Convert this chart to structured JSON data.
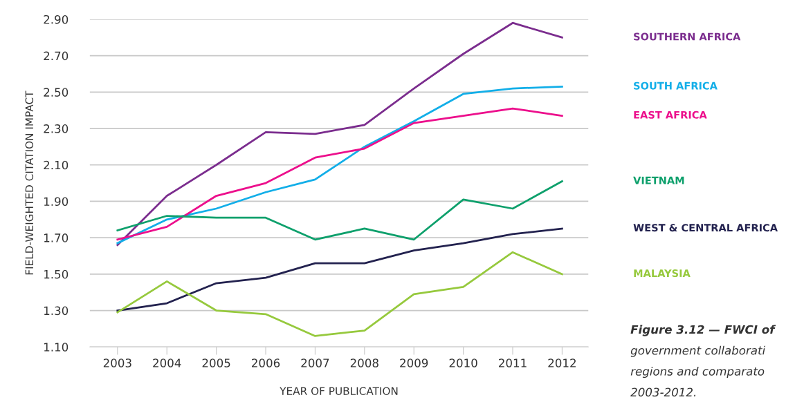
{
  "chart_data": {
    "type": "line",
    "xlabel": "YEAR OF PUBLICATION",
    "ylabel": "FIELD-WEIGHTED CITATION IMPACT",
    "categories": [
      "2003",
      "2004",
      "2005",
      "2006",
      "2007",
      "2008",
      "2009",
      "2010",
      "2011",
      "2012"
    ],
    "series": [
      {
        "name": "SOUTHERN AFRICA",
        "color": "#7b2d8e",
        "values": [
          1.66,
          1.93,
          2.1,
          2.28,
          2.27,
          2.32,
          2.52,
          2.71,
          2.88,
          2.8
        ]
      },
      {
        "name": "SOUTH AFRICA",
        "color": "#12aee8",
        "values": [
          1.67,
          1.8,
          1.86,
          1.95,
          2.02,
          2.2,
          2.34,
          2.49,
          2.52,
          2.53
        ]
      },
      {
        "name": "EAST AFRICA",
        "color": "#ec0f8c",
        "values": [
          1.69,
          1.76,
          1.93,
          2.0,
          2.14,
          2.19,
          2.33,
          2.37,
          2.41,
          2.37
        ]
      },
      {
        "name": "VIETNAM",
        "color": "#0ea06c",
        "values": [
          1.74,
          1.82,
          1.81,
          1.81,
          1.69,
          1.75,
          1.69,
          1.91,
          1.86,
          2.01
        ]
      },
      {
        "name": "WEST & CENTRAL AFRICA",
        "color": "#23224f",
        "values": [
          1.3,
          1.34,
          1.45,
          1.48,
          1.56,
          1.56,
          1.63,
          1.67,
          1.72,
          1.75
        ]
      },
      {
        "name": "MALAYSIA",
        "color": "#96c93d",
        "values": [
          1.29,
          1.46,
          1.3,
          1.28,
          1.16,
          1.19,
          1.39,
          1.43,
          1.62,
          1.5
        ]
      }
    ],
    "ylim": [
      1.1,
      2.9
    ],
    "yticks": [
      {
        "value": 1.1,
        "label": "1.10"
      },
      {
        "value": 1.3,
        "label": "1.30"
      },
      {
        "value": 1.5,
        "label": "1.50"
      },
      {
        "value": 1.7,
        "label": "1.70"
      },
      {
        "value": 1.9,
        "label": "1.90"
      },
      {
        "value": 2.1,
        "label": "2.10"
      },
      {
        "value": 2.3,
        "label": "2.30"
      },
      {
        "value": 2.5,
        "label": "2.50"
      },
      {
        "value": 2.7,
        "label": "2.70"
      },
      {
        "value": 2.9,
        "label": "2.90"
      }
    ],
    "grid": "y",
    "legend": "right",
    "marker": "none",
    "line_style": "solid",
    "annotations": [
      "Figure 3.12 — FWCI of",
      "government collaborati",
      "regions and comparato",
      "2003-2012."
    ]
  }
}
